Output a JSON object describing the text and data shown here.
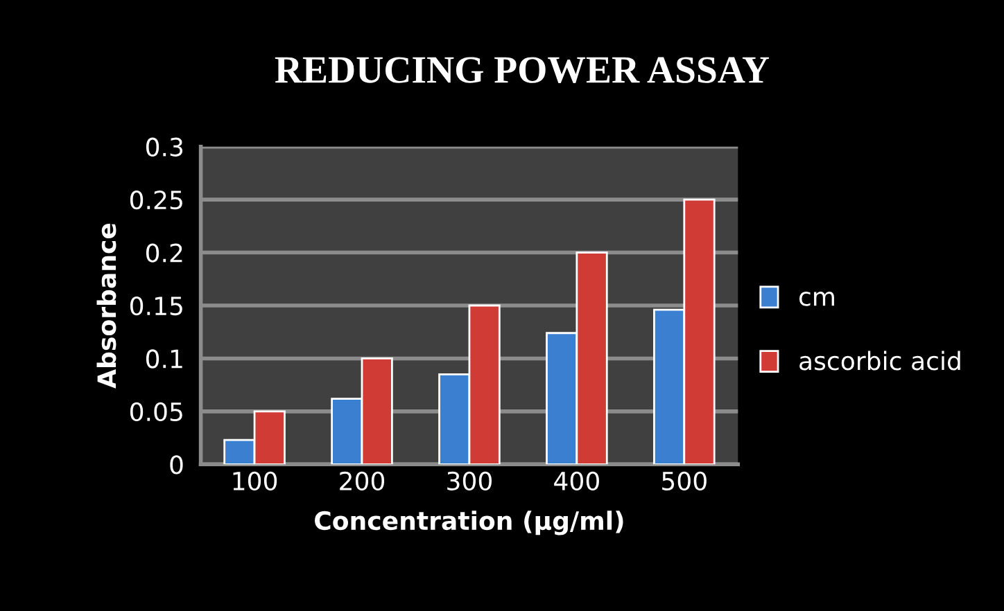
{
  "chart_data": {
    "type": "bar",
    "title": "REDUCING POWER ASSAY",
    "xlabel": "Concentration (µg/ml)",
    "ylabel": "Absorbance",
    "categories": [
      "100",
      "200",
      "300",
      "400",
      "500"
    ],
    "series": [
      {
        "name": "cm",
        "color": "#3a7fd0",
        "values": [
          0.023,
          0.062,
          0.085,
          0.124,
          0.146
        ]
      },
      {
        "name": "ascorbic acid",
        "color": "#d03b36",
        "values": [
          0.05,
          0.1,
          0.15,
          0.2,
          0.25
        ]
      }
    ],
    "ylim": [
      0,
      0.3
    ],
    "yticks": [
      0,
      0.05,
      0.1,
      0.15,
      0.2,
      0.25,
      0.3
    ],
    "grid": "y",
    "legend": "right"
  }
}
